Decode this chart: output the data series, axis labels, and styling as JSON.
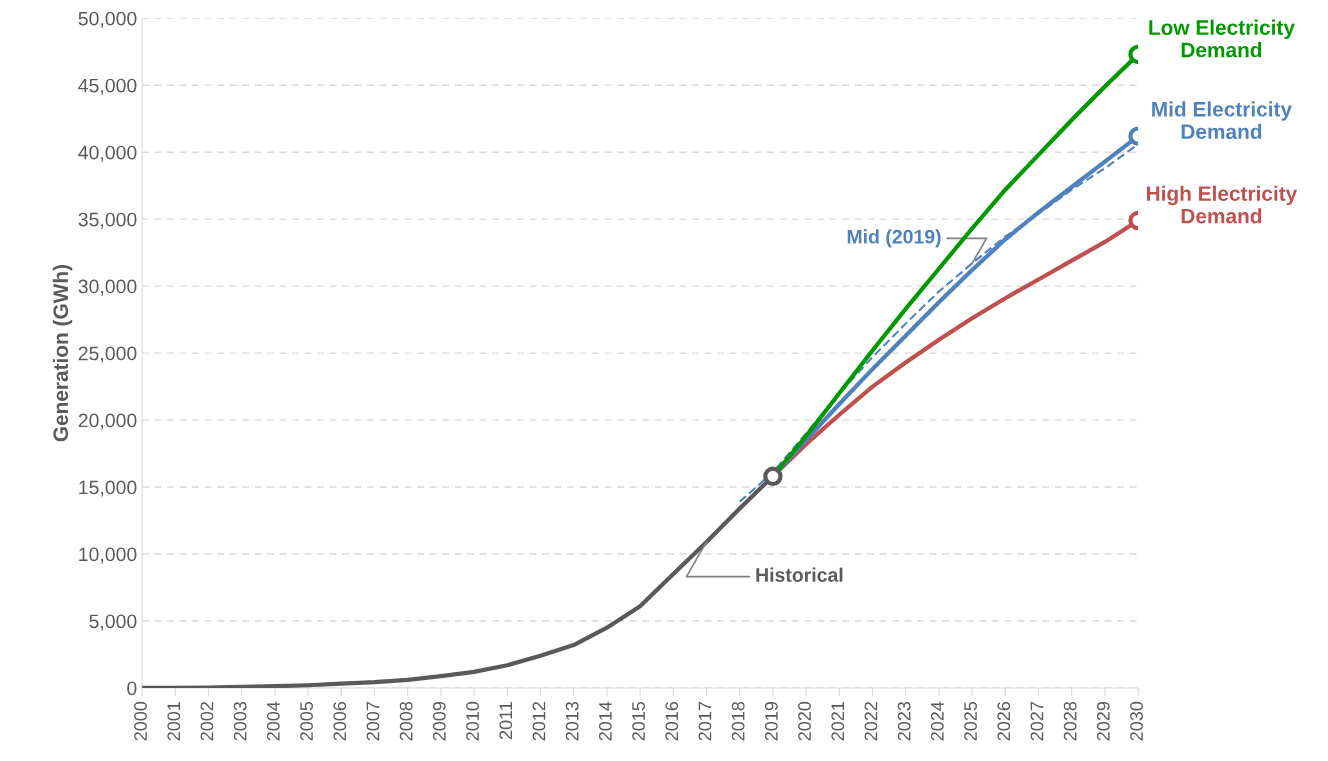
{
  "chart_data": {
    "type": "line",
    "ylabel": "Generation (GWh)",
    "categories": [
      "2000",
      "2001",
      "2002",
      "2003",
      "2004",
      "2005",
      "2006",
      "2007",
      "2008",
      "2009",
      "2010",
      "2011",
      "2012",
      "2013",
      "2014",
      "2015",
      "2016",
      "2017",
      "2018",
      "2019",
      "2020",
      "2021",
      "2022",
      "2023",
      "2024",
      "2025",
      "2026",
      "2027",
      "2028",
      "2029",
      "2030"
    ],
    "series": [
      {
        "color": "#595959",
        "values": [
          0,
          0,
          20,
          80,
          130,
          200,
          320,
          430,
          600,
          880,
          1200,
          1700,
          2400,
          3200,
          4500,
          6100,
          8500,
          10900,
          13400,
          15800,
          null,
          null,
          null,
          null,
          null,
          null,
          null,
          null,
          null,
          null,
          null
        ]
      },
      {
        "color": "#4f81bd",
        "line_style": "dashed",
        "values": [
          null,
          null,
          null,
          null,
          null,
          null,
          null,
          null,
          null,
          null,
          null,
          null,
          null,
          null,
          null,
          null,
          null,
          null,
          13900,
          16100,
          19000,
          22000,
          24700,
          27200,
          29600,
          31700,
          33700,
          35400,
          37200,
          38800,
          40600
        ]
      },
      {
        "name": "High Electricity\nDemand",
        "color": "#c0504d",
        "values": [
          null,
          null,
          null,
          null,
          null,
          null,
          null,
          null,
          null,
          null,
          null,
          null,
          null,
          null,
          null,
          null,
          null,
          null,
          null,
          15800,
          18200,
          20400,
          22500,
          24300,
          26000,
          27600,
          29100,
          30500,
          31900,
          33300,
          34900
        ]
      },
      {
        "name": "Mid Electricity\nDemand",
        "color": "#4f81bd",
        "values": [
          null,
          null,
          null,
          null,
          null,
          null,
          null,
          null,
          null,
          null,
          null,
          null,
          null,
          null,
          null,
          null,
          null,
          null,
          null,
          15800,
          18500,
          21200,
          23800,
          26300,
          28800,
          31200,
          33500,
          35500,
          37400,
          39300,
          41200
        ]
      },
      {
        "name": "Low Electricity\nDemand",
        "color": "#009900",
        "values": [
          null,
          null,
          null,
          null,
          null,
          null,
          null,
          null,
          null,
          null,
          null,
          null,
          null,
          null,
          null,
          null,
          null,
          null,
          null,
          15800,
          18800,
          22000,
          25200,
          28300,
          31300,
          34300,
          37200,
          39800,
          42400,
          44900,
          47300
        ]
      }
    ],
    "annotations": [
      {
        "text": "Historical",
        "x": "2017",
        "y": 10900
      },
      {
        "text": "Mid (2019)",
        "x": "2025",
        "y": 31700
      }
    ],
    "ylim": [
      0,
      50000
    ],
    "yticks": [
      {
        "value": 0,
        "label": "0"
      },
      {
        "value": 5000,
        "label": "5,000"
      },
      {
        "value": 10000,
        "label": "10,000"
      },
      {
        "value": 15000,
        "label": "15,000"
      },
      {
        "value": 20000,
        "label": "20,000"
      },
      {
        "value": 25000,
        "label": "25,000"
      },
      {
        "value": 30000,
        "label": "30,000"
      },
      {
        "value": 35000,
        "label": "35,000"
      },
      {
        "value": 40000,
        "label": "40,000"
      },
      {
        "value": 45000,
        "label": "45,000"
      },
      {
        "value": 50000,
        "label": "50,000"
      }
    ],
    "grid": "y",
    "legend": false
  }
}
